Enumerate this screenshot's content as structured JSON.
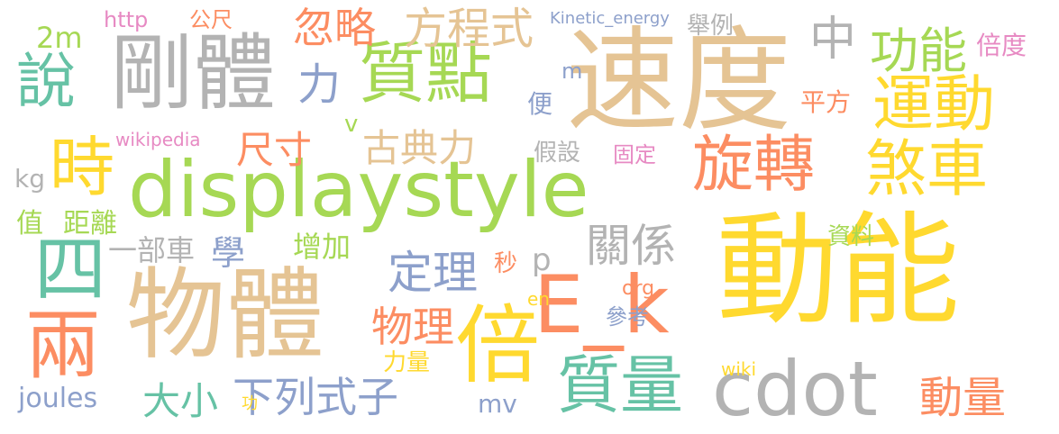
{
  "words": [
    {
      "text": "動能",
      "color": "#ffd92f"
    },
    {
      "text": "速度",
      "color": "#e5c494"
    },
    {
      "text": "displaystyle",
      "color": "#a6d854"
    },
    {
      "text": "物體",
      "color": "#e5c494"
    },
    {
      "text": "剛體",
      "color": "#b3b3b3"
    },
    {
      "text": "質點",
      "color": "#a6d854"
    },
    {
      "text": "運動",
      "color": "#ffd92f"
    },
    {
      "text": "旋轉",
      "color": "#fc8d62"
    },
    {
      "text": "煞車",
      "color": "#ffd92f"
    },
    {
      "text": "倍",
      "color": "#ffd92f"
    },
    {
      "text": "E_k",
      "color": "#fc8d62"
    },
    {
      "text": "cdot",
      "color": "#b3b3b3"
    },
    {
      "text": "質量",
      "color": "#66c2a5"
    },
    {
      "text": "四",
      "color": "#66c2a5"
    },
    {
      "text": "兩",
      "color": "#fc8d62"
    },
    {
      "text": "說",
      "color": "#66c2a5"
    },
    {
      "text": "時",
      "color": "#ffd92f"
    },
    {
      "text": "忽略",
      "color": "#fc8d62"
    },
    {
      "text": "方程式",
      "color": "#e5c494"
    },
    {
      "text": "功能",
      "color": "#a6d854"
    },
    {
      "text": "中",
      "color": "#b3b3b3"
    },
    {
      "text": "力",
      "color": "#8da0cb"
    },
    {
      "text": "古典力",
      "color": "#e5c494"
    },
    {
      "text": "尺寸",
      "color": "#fc8d62"
    },
    {
      "text": "定理",
      "color": "#8da0cb"
    },
    {
      "text": "關係",
      "color": "#b3b3b3"
    },
    {
      "text": "物理",
      "color": "#fc8d62"
    },
    {
      "text": "下列式子",
      "color": "#8da0cb"
    },
    {
      "text": "大小",
      "color": "#66c2a5"
    },
    {
      "text": "動量",
      "color": "#fc8d62"
    },
    {
      "text": "學",
      "color": "#8da0cb"
    },
    {
      "text": "增加",
      "color": "#a6d854"
    },
    {
      "text": "一部車",
      "color": "#b3b3b3"
    },
    {
      "text": "距離",
      "color": "#a6d854"
    },
    {
      "text": "值",
      "color": "#a6d854"
    },
    {
      "text": "2m",
      "color": "#a6d854"
    },
    {
      "text": "http",
      "color": "#e78ac3"
    },
    {
      "text": "公尺",
      "color": "#fc8d62"
    },
    {
      "text": "Kinetic_energy",
      "color": "#8da0cb"
    },
    {
      "text": "舉例",
      "color": "#b3b3b3"
    },
    {
      "text": "倍度",
      "color": "#e78ac3"
    },
    {
      "text": "平方",
      "color": "#fc8d62"
    },
    {
      "text": "便",
      "color": "#8da0cb"
    },
    {
      "text": "m",
      "color": "#8da0cb"
    },
    {
      "text": "v",
      "color": "#a6d854"
    },
    {
      "text": "wikipedia",
      "color": "#e78ac3"
    },
    {
      "text": "假設",
      "color": "#b3b3b3"
    },
    {
      "text": "固定",
      "color": "#e78ac3"
    },
    {
      "text": "kg",
      "color": "#b3b3b3"
    },
    {
      "text": "資料",
      "color": "#a6d854"
    },
    {
      "text": "秒",
      "color": "#fc8d62"
    },
    {
      "text": "p",
      "color": "#b3b3b3"
    },
    {
      "text": "en",
      "color": "#ffd92f"
    },
    {
      "text": "org",
      "color": "#fc8d62"
    },
    {
      "text": "參考",
      "color": "#8da0cb"
    },
    {
      "text": "力量",
      "color": "#ffd92f"
    },
    {
      "text": "joules",
      "color": "#8da0cb"
    },
    {
      "text": "功",
      "color": "#ffd92f"
    },
    {
      "text": "mv",
      "color": "#8da0cb"
    },
    {
      "text": "wiki",
      "color": "#ffd92f"
    }
  ]
}
